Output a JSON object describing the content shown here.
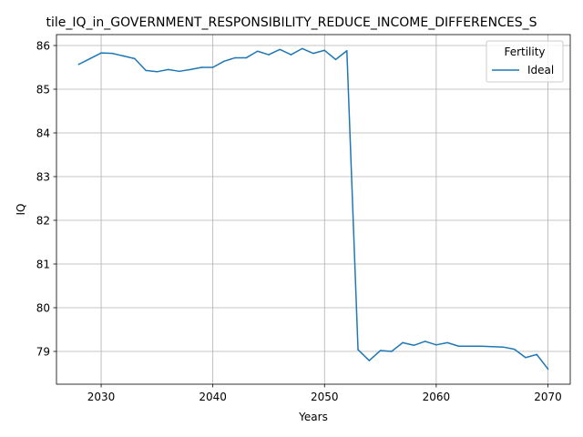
{
  "chart_data": {
    "type": "line",
    "title": "tile_IQ_in_GOVERNMENT_RESPONSIBILITY_REDUCE_INCOME_DIFFERENCES_S",
    "xlabel": "Years",
    "ylabel": "IQ",
    "xlim": [
      2026,
      2072
    ],
    "ylim": [
      78.25,
      86.25
    ],
    "xticks": [
      2030,
      2040,
      2050,
      2060,
      2070
    ],
    "yticks": [
      79,
      80,
      81,
      82,
      83,
      84,
      85,
      86
    ],
    "grid": true,
    "legend": {
      "title": "Fertility",
      "position": "top-right"
    },
    "series": [
      {
        "name": "Ideal",
        "color": "#1f77b4",
        "x": [
          2028,
          2029,
          2030,
          2031,
          2032,
          2033,
          2034,
          2035,
          2036,
          2037,
          2038,
          2039,
          2040,
          2041,
          2042,
          2043,
          2044,
          2045,
          2046,
          2047,
          2048,
          2049,
          2050,
          2051,
          2052,
          2053,
          2054,
          2055,
          2056,
          2057,
          2058,
          2059,
          2060,
          2061,
          2062,
          2063,
          2064,
          2065,
          2066,
          2067,
          2068,
          2069,
          2070
        ],
        "values": [
          85.57,
          85.7,
          85.83,
          85.82,
          85.76,
          85.7,
          85.43,
          85.4,
          85.45,
          85.41,
          85.45,
          85.5,
          85.5,
          85.64,
          85.72,
          85.72,
          85.87,
          85.79,
          85.91,
          85.79,
          85.93,
          85.82,
          85.89,
          85.68,
          85.88,
          79.04,
          78.79,
          79.02,
          79.0,
          79.2,
          79.14,
          79.23,
          79.15,
          79.2,
          79.12,
          79.12,
          79.12,
          79.11,
          79.1,
          79.05,
          78.86,
          78.93,
          78.6
        ]
      }
    ]
  }
}
